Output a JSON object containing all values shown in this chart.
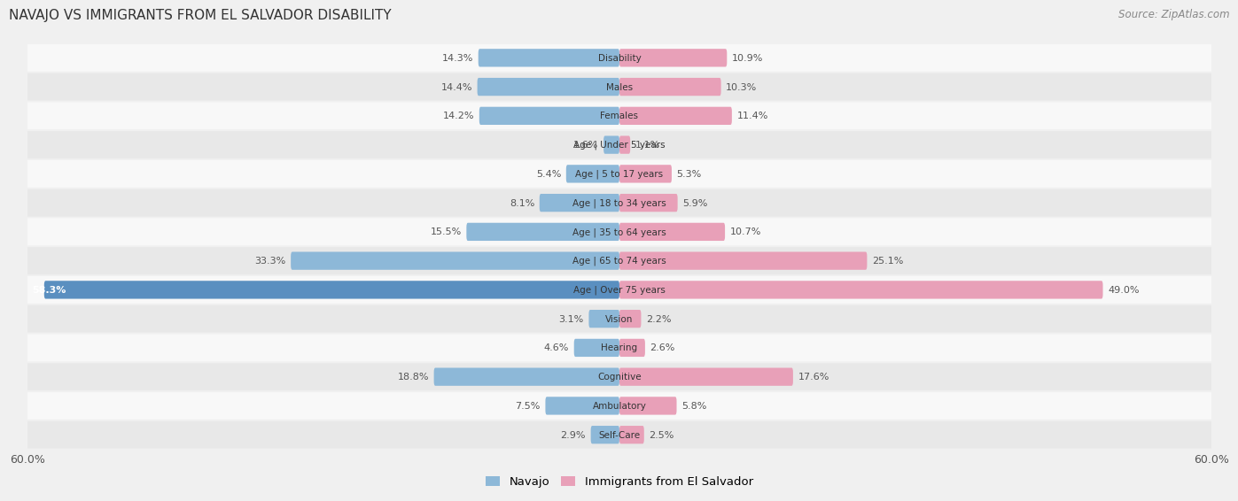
{
  "title": "NAVAJO VS IMMIGRANTS FROM EL SALVADOR DISABILITY",
  "source": "Source: ZipAtlas.com",
  "categories": [
    "Disability",
    "Males",
    "Females",
    "Age | Under 5 years",
    "Age | 5 to 17 years",
    "Age | 18 to 34 years",
    "Age | 35 to 64 years",
    "Age | 65 to 74 years",
    "Age | Over 75 years",
    "Vision",
    "Hearing",
    "Cognitive",
    "Ambulatory",
    "Self-Care"
  ],
  "navajo_values": [
    14.3,
    14.4,
    14.2,
    1.6,
    5.4,
    8.1,
    15.5,
    33.3,
    58.3,
    3.1,
    4.6,
    18.8,
    7.5,
    2.9
  ],
  "elsalvador_values": [
    10.9,
    10.3,
    11.4,
    1.1,
    5.3,
    5.9,
    10.7,
    25.1,
    49.0,
    2.2,
    2.6,
    17.6,
    5.8,
    2.5
  ],
  "navajo_color": "#8db8d8",
  "elsalvador_color": "#e8a0b8",
  "navajo_color_bright": "#5a8fc0",
  "elsalvador_color_bright": "#d84070",
  "axis_limit": 60.0,
  "background_color": "#f0f0f0",
  "row_bg_light": "#f8f8f8",
  "row_bg_dark": "#e8e8e8",
  "legend_navajo": "Navajo",
  "legend_elsalvador": "Immigrants from El Salvador"
}
